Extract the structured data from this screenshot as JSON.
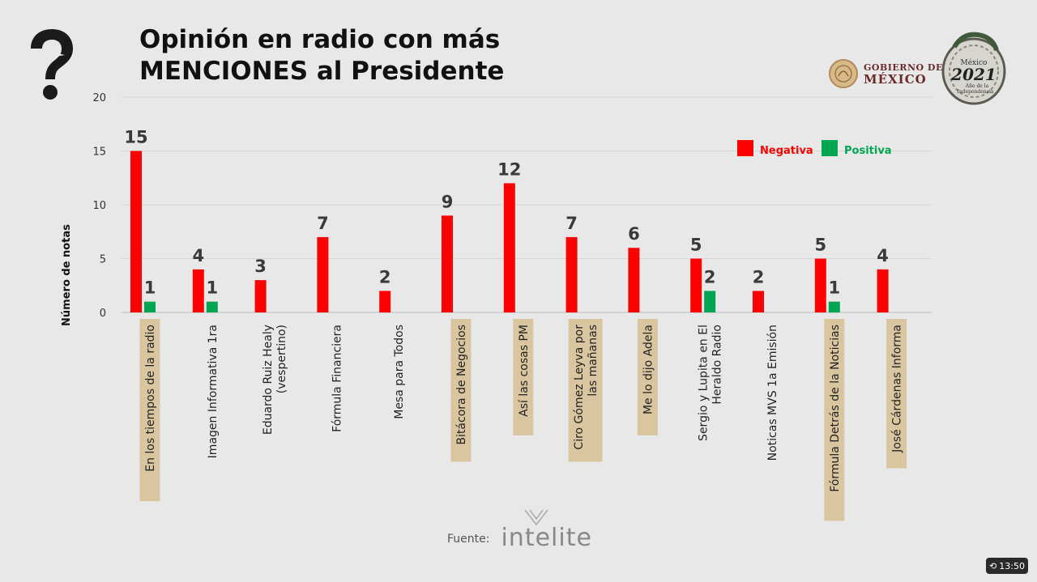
{
  "header": {
    "title_line1": "Opinión en radio con más",
    "title_line2": "MENCIONES al Presidente"
  },
  "logos": {
    "gobierno_line1": "GOBIERNO DE",
    "gobierno_line2": "MÉXICO",
    "emblem_line1": "México",
    "emblem_year": "2021",
    "emblem_line2": "Año de la",
    "emblem_line3": "Independencia"
  },
  "footer": {
    "source_label": "Fuente:",
    "source_brand": "intelite"
  },
  "clock": {
    "time": "13:50"
  },
  "colors": {
    "negativa": "#ff0000",
    "positiva": "#00a651",
    "label_box": "#d9c6a0"
  },
  "chart_data": {
    "type": "bar",
    "ylabel": "Número de notas",
    "xlabel": "",
    "ylim": [
      0,
      20
    ],
    "yticks": [
      0,
      5,
      10,
      15,
      20
    ],
    "grid": true,
    "legend_position": "top-right",
    "categories": [
      "En los tiempos de la radio",
      "Imagen Informativa 1ra",
      "Eduardo Ruiz Healy (vespertino)",
      "Fórmula Financiera",
      "Mesa para Todos",
      "Bitácora de Negocios",
      "Así las cosas PM",
      "Ciro Gómez Leyva por las mañanas",
      "Me lo dijo Adela",
      "Sergio y Lupita en El Heraldo Radio",
      "Noticas MVS 1a Emisión",
      "Fórmula Detrás de la Noticias",
      "José Cárdenas Informa"
    ],
    "highlighted": [
      true,
      false,
      false,
      false,
      false,
      true,
      true,
      true,
      true,
      false,
      false,
      true,
      true
    ],
    "series": [
      {
        "name": "Negativa",
        "color": "#ff0000",
        "values": [
          15,
          4,
          3,
          7,
          2,
          9,
          12,
          7,
          6,
          5,
          2,
          5,
          4
        ]
      },
      {
        "name": "Positiva",
        "color": "#00a651",
        "values": [
          1,
          1,
          null,
          null,
          null,
          null,
          null,
          null,
          null,
          2,
          null,
          1,
          null
        ]
      }
    ]
  }
}
